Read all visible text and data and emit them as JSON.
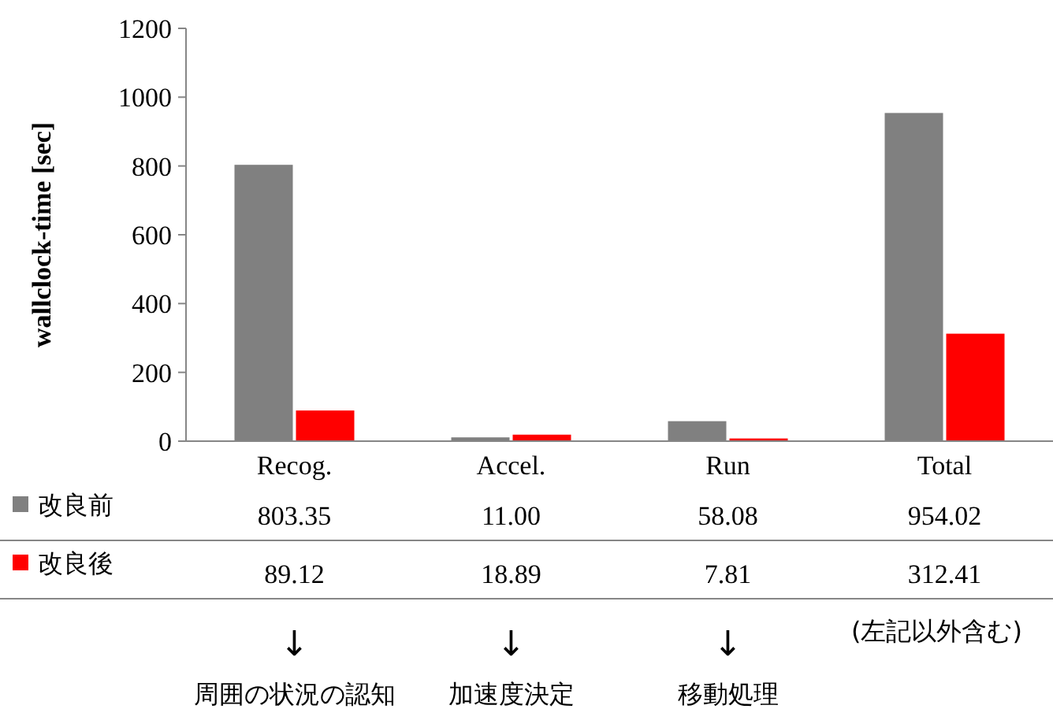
{
  "chart_data": {
    "type": "bar",
    "ylabel": "wallclock-time [sec]",
    "categories": [
      "Recog.",
      "Accel.",
      "Run",
      "Total"
    ],
    "series": [
      {
        "name": "改良前",
        "color": "#808080",
        "values": [
          803.35,
          11.0,
          58.08,
          954.02
        ],
        "value_labels": [
          "803.35",
          "11.00",
          "58.08",
          "954.02"
        ]
      },
      {
        "name": "改良後",
        "color": "#ff0000",
        "values": [
          89.12,
          18.89,
          7.81,
          312.41
        ],
        "value_labels": [
          "89.12",
          "18.89",
          "7.81",
          "312.41"
        ]
      }
    ],
    "ylim": [
      0,
      1200
    ],
    "yticks": [
      0,
      200,
      400,
      600,
      800,
      1000,
      1200
    ],
    "grid": false,
    "legend": "bottom",
    "annotations": [
      "(左記以外含む)",
      "↓",
      "↓",
      "↓",
      "周囲の状況の認知",
      "加速度決定",
      "移動処理"
    ]
  }
}
